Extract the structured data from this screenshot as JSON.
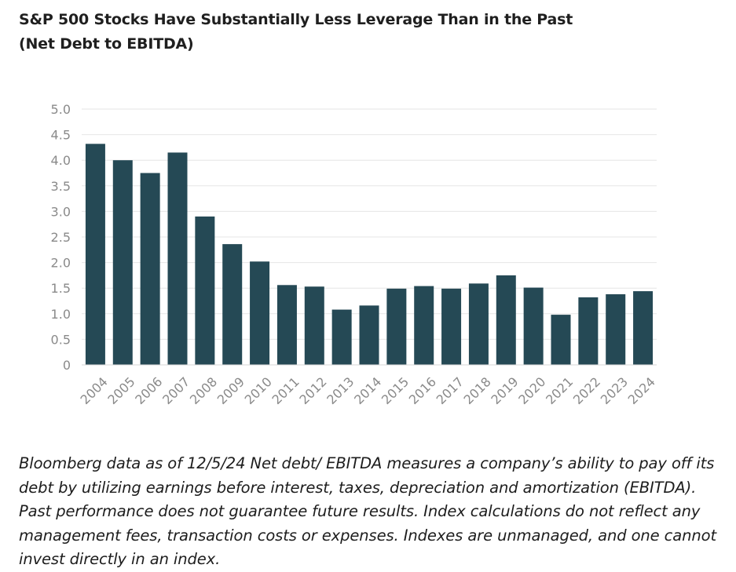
{
  "chart_data": {
    "type": "bar",
    "title": "S&P 500 Stocks Have Substantially Less Leverage Than in the Past",
    "subtitle": "(Net Debt to EBITDA)",
    "xlabel": "",
    "ylabel": "",
    "ylim": [
      0,
      5
    ],
    "yticks": [
      "0",
      "0.5",
      "1.0",
      "1.5",
      "2.0",
      "2.5",
      "3.0",
      "3.5",
      "4.0",
      "4.5",
      "5.0"
    ],
    "ytick_values": [
      0,
      0.5,
      1.0,
      1.5,
      2.0,
      2.5,
      3.0,
      3.5,
      4.0,
      4.5,
      5.0
    ],
    "grid": true,
    "categories": [
      "2004",
      "2005",
      "2006",
      "2007",
      "2008",
      "2009",
      "2010",
      "2011",
      "2012",
      "2013",
      "2014",
      "2015",
      "2016",
      "2017",
      "2018",
      "2019",
      "2020",
      "2021",
      "2022",
      "2023",
      "2024"
    ],
    "values": [
      4.32,
      4.0,
      3.75,
      4.15,
      2.9,
      2.36,
      2.02,
      1.56,
      1.53,
      1.08,
      1.16,
      1.49,
      1.54,
      1.49,
      1.59,
      1.75,
      1.51,
      0.98,
      1.32,
      1.38,
      1.44
    ],
    "bar_color": "#254955",
    "grid_color": "#e6e6e6"
  },
  "footnote": "Bloomberg data as of 12/5/24 Net debt/ EBITDA measures a company’s ability to pay off its debt by utilizing earnings before interest, taxes, depreciation and amortization (EBITDA). Past performance does not guarantee future results. Index calculations do not reflect any management fees, transaction costs or expenses. Indexes are unmanaged, and one cannot invest directly in an index."
}
